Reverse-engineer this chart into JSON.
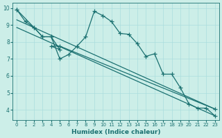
{
  "xlabel": "Humidex (Indice chaleur)",
  "bg_color": "#cceee8",
  "line_color": "#1a7070",
  "grid_color": "#aadddd",
  "xlim": [
    -0.5,
    23.5
  ],
  "ylim": [
    3.4,
    10.3
  ],
  "yticks": [
    4,
    5,
    6,
    7,
    8,
    9,
    10
  ],
  "xticks": [
    0,
    1,
    2,
    3,
    4,
    5,
    6,
    7,
    8,
    9,
    10,
    11,
    12,
    13,
    14,
    15,
    16,
    17,
    18,
    19,
    20,
    21,
    22,
    23
  ],
  "series_main_x": [
    0,
    1,
    2,
    3,
    4,
    5,
    6,
    7,
    8,
    9,
    10,
    11,
    12,
    13,
    14,
    15,
    16,
    17,
    18,
    19,
    20,
    21,
    22,
    23
  ],
  "series_main_y": [
    9.9,
    9.2,
    8.85,
    8.3,
    8.3,
    7.0,
    7.25,
    7.75,
    8.3,
    9.8,
    9.55,
    9.2,
    8.5,
    8.45,
    7.9,
    7.15,
    7.3,
    6.1,
    6.1,
    5.3,
    4.35,
    4.1,
    4.1,
    3.65
  ],
  "series_zigzag_x": [
    0,
    2,
    3,
    4,
    5,
    4,
    5,
    23
  ],
  "series_zigzag_y": [
    9.9,
    8.85,
    8.3,
    8.3,
    7.55,
    7.75,
    7.75,
    4.05
  ],
  "series_line1_x": [
    0,
    23
  ],
  "series_line1_y": [
    9.3,
    4.05
  ],
  "series_line2_x": [
    0,
    23
  ],
  "series_line2_y": [
    8.85,
    3.65
  ],
  "font_color": "#1a7070",
  "xlabel_fontsize": 6.5,
  "tick_labelsize": 5.5
}
